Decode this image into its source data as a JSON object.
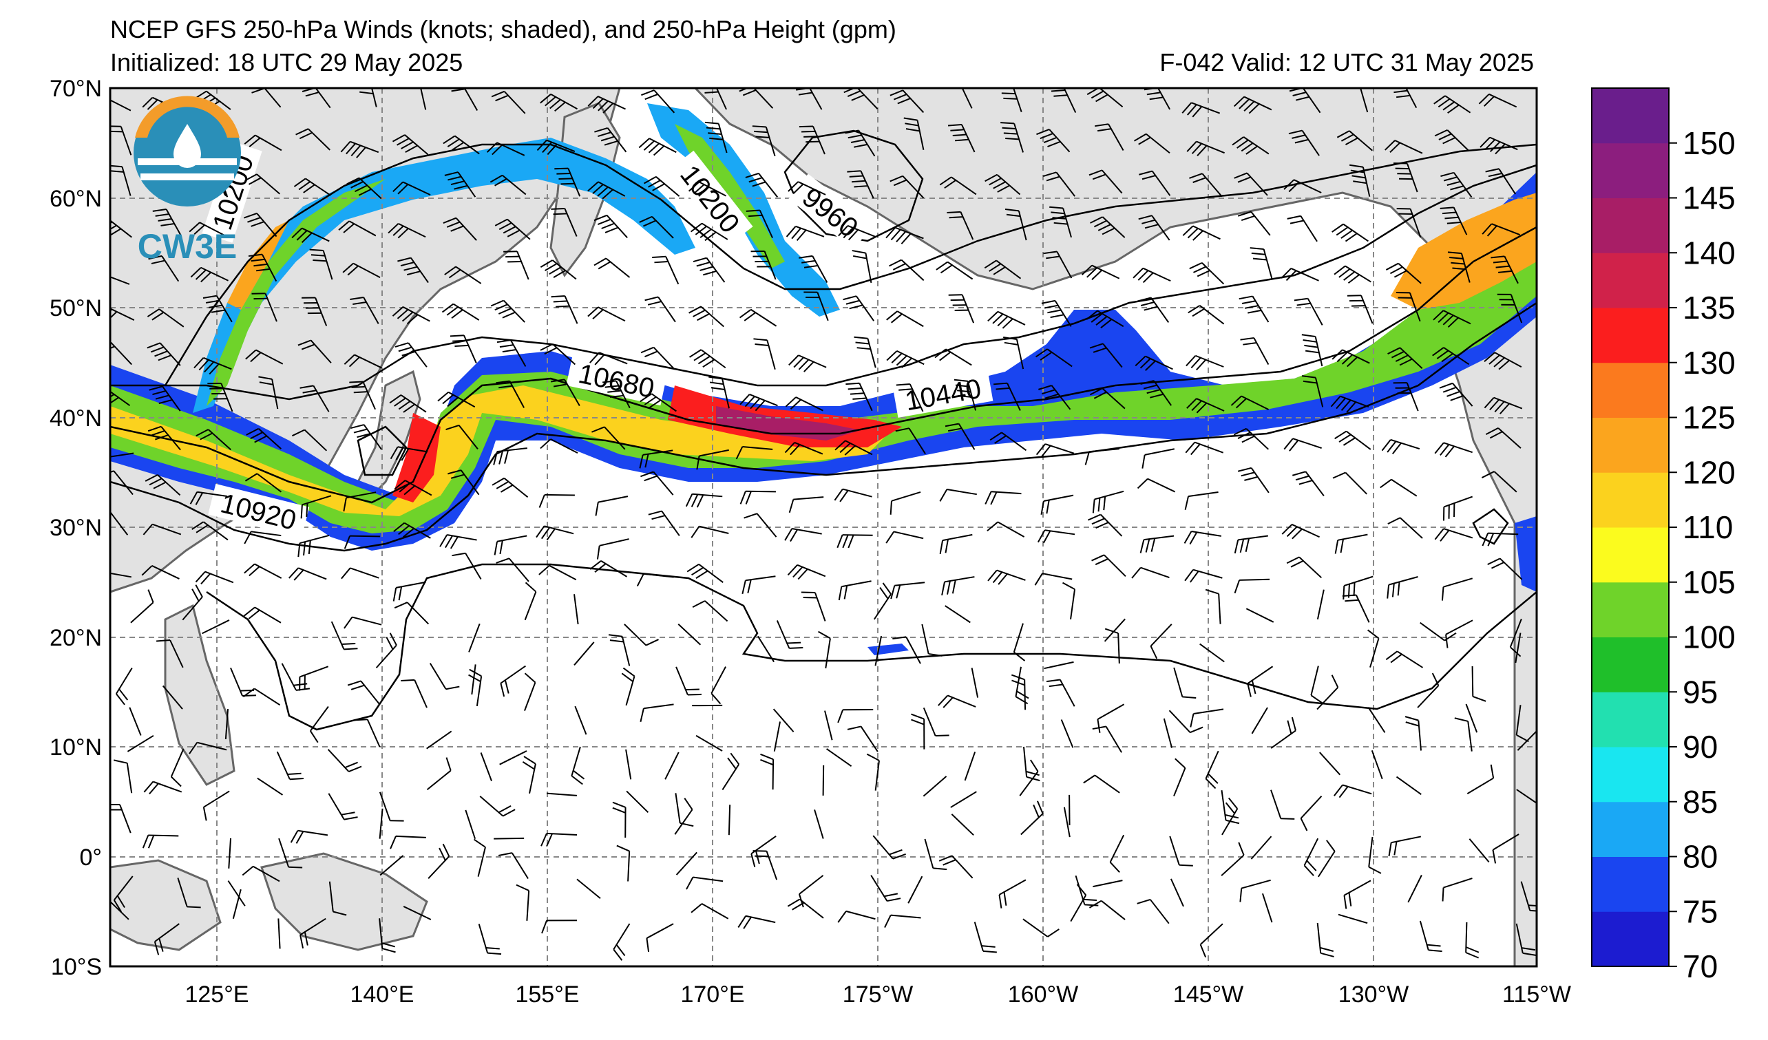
{
  "header": {
    "title": "NCEP GFS 250-hPa Winds (knots; shaded), and 250-hPa Height (gpm)",
    "initialized": "Initialized: 18 UTC 29 May 2025",
    "valid": "F-042  Valid: 12 UTC 31 May 2025"
  },
  "logo": {
    "text": "CW3E"
  },
  "axes": {
    "lat_labels": [
      "70°N",
      "60°N",
      "50°N",
      "40°N",
      "30°N",
      "20°N",
      "10°N",
      "0°",
      "10°S"
    ],
    "lon_labels": [
      "125°E",
      "140°E",
      "155°E",
      "170°E",
      "175°W",
      "160°W",
      "145°W",
      "130°W",
      "115°W"
    ]
  },
  "colorbar": {
    "labels": [
      "70",
      "75",
      "80",
      "85",
      "90",
      "95",
      "100",
      "105",
      "110",
      "120",
      "125",
      "130",
      "135",
      "140",
      "145",
      "150"
    ],
    "colors": [
      "#1c1cd0",
      "#1a45f0",
      "#1aa8f5",
      "#19e6f0",
      "#22e0b0",
      "#1fbf2a",
      "#6fd32a",
      "#fbfb1e",
      "#fbd21e",
      "#fba51e",
      "#fb7a1e",
      "#fb1e1e",
      "#d0224a",
      "#a81e66",
      "#8c1e7e",
      "#6a1e8c"
    ]
  },
  "contour_labels": [
    "10200",
    "10200",
    "9960",
    "10680",
    "10440",
    "10920"
  ],
  "colors": {
    "land": "#e2e2e2",
    "coast": "#666666",
    "grid": "#888888"
  }
}
